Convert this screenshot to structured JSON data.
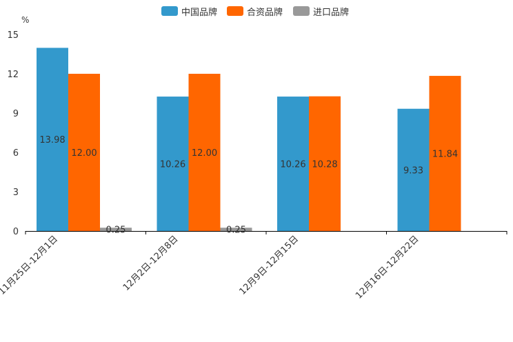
{
  "chart_data": {
    "type": "bar",
    "ylabel": "%",
    "ylim": [
      0,
      15
    ],
    "yticks": [
      0,
      3,
      6,
      9,
      12,
      15
    ],
    "legend_position": "top-center",
    "categories": [
      "11月25日-12月1日",
      "12月2日-12月8日",
      "12月9日-12月15日",
      "12月16日-12月22日"
    ],
    "series": [
      {
        "name": "中国品牌",
        "color": "#3399cc",
        "values": [
          13.98,
          10.26,
          10.26,
          9.33
        ],
        "labels": [
          "13.98",
          "10.26",
          "10.26",
          "9.33"
        ]
      },
      {
        "name": "合资品牌",
        "color": "#ff6600",
        "values": [
          12.0,
          12.0,
          10.28,
          11.84
        ],
        "labels": [
          "12.00",
          "12.00",
          "10.28",
          "11.84"
        ]
      },
      {
        "name": "进口品牌",
        "color": "#999999",
        "values": [
          0.25,
          0.25,
          null,
          null
        ],
        "labels": [
          "0.25",
          "0.25",
          null,
          null
        ]
      }
    ]
  }
}
